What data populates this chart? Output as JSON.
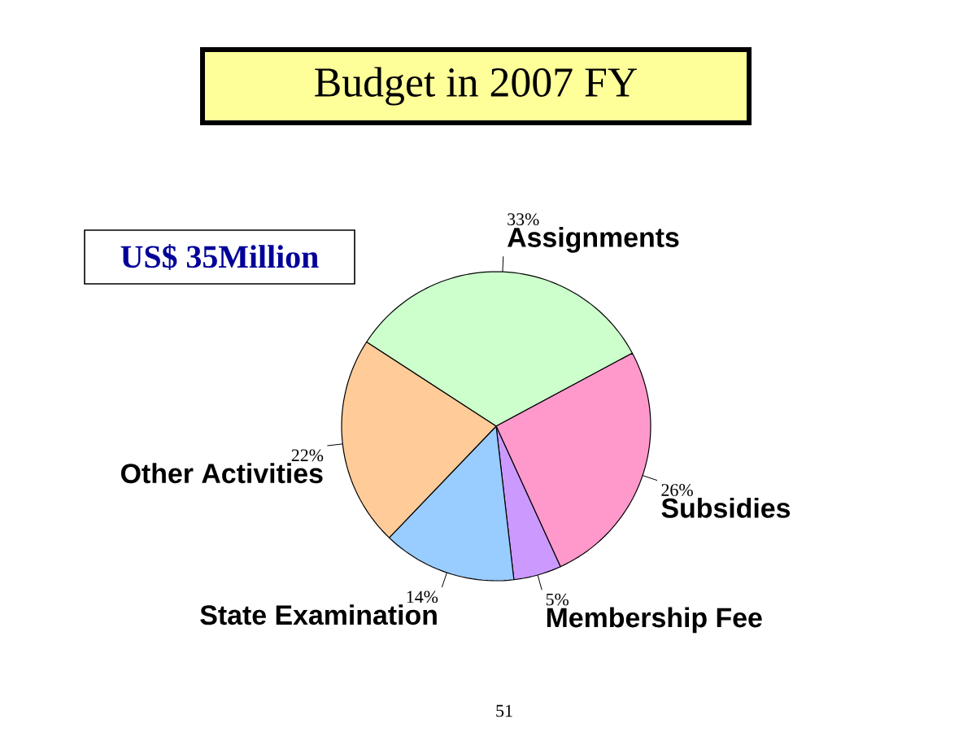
{
  "chart_data": {
    "type": "pie",
    "title": "Budget in 2007 FY",
    "categories": [
      "Assignments",
      "Subsidies",
      "Membership Fee",
      "State Examination",
      "Other Activities"
    ],
    "values": [
      33,
      26,
      5,
      14,
      22
    ],
    "colors": [
      "#ccffcc",
      "#ff99cc",
      "#cc99ff",
      "#99ccff",
      "#ffcc99"
    ],
    "value_labels": [
      "33%",
      "26%",
      "5%",
      "14%",
      "22%"
    ],
    "annotations": [
      "US$ 35Million",
      "51"
    ]
  }
}
